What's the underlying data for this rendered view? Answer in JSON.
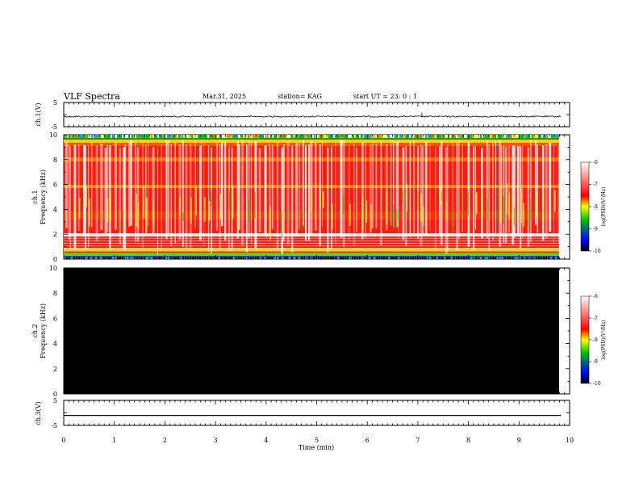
{
  "header": {
    "title": "VLF Spectra",
    "date": "Mar.31, 2025",
    "station": "station= KAG",
    "start": "start UT =  23: 0  : 1"
  },
  "colorbar": {
    "label": "log(PSD)(V²/Hz)",
    "ticks": [
      "-6",
      "-7",
      "-8",
      "-9",
      "-10"
    ],
    "colors": [
      "#000000",
      "#0000ff",
      "#00c000",
      "#ffff00",
      "#ff0000",
      "#ffffff"
    ]
  },
  "chart_data": [
    {
      "type": "line",
      "name": "ch1-waveform",
      "ylabel": "ch.1(V)",
      "ylim": [
        -5,
        5
      ],
      "yticks": [
        "5",
        "-5"
      ],
      "x": [
        0,
        9.83
      ],
      "baseline_y": -0.8,
      "spike_x": 7.08,
      "spike_y": 0.8,
      "xlim": [
        0,
        10
      ]
    },
    {
      "type": "heatmap",
      "name": "ch1-spectrogram",
      "ylabel": "ch.1\nFrequency (kHz)",
      "ylim": [
        0,
        10
      ],
      "yticks": [
        "0",
        "2",
        "4",
        "6",
        "8",
        "10"
      ],
      "xlim": [
        0,
        10
      ],
      "data_end_min": 9.83,
      "zlim": [
        -10,
        -6
      ]
    },
    {
      "type": "heatmap",
      "name": "ch2-spectrogram",
      "ylabel": "ch.2\nFrequency (kHz)",
      "ylim": [
        0,
        10
      ],
      "yticks": [
        "0",
        "2",
        "4",
        "6",
        "8",
        "10"
      ],
      "xlim": [
        0,
        10
      ],
      "data_end_min": 9.83,
      "zlim": [
        -10,
        -6
      ],
      "note": "no signal (all black)"
    },
    {
      "type": "line",
      "name": "ch3-waveform",
      "ylabel": "ch.3(V)",
      "ylim": [
        -5,
        5
      ],
      "yticks": [
        "5",
        "-5"
      ],
      "x": [
        0,
        9.83
      ],
      "y": [
        -1,
        -1
      ],
      "xlim": [
        0,
        10
      ],
      "xlabel": "Time (min)",
      "xticks": [
        "0",
        "1",
        "2",
        "3",
        "4",
        "5",
        "6",
        "7",
        "8",
        "9",
        "10"
      ]
    }
  ]
}
